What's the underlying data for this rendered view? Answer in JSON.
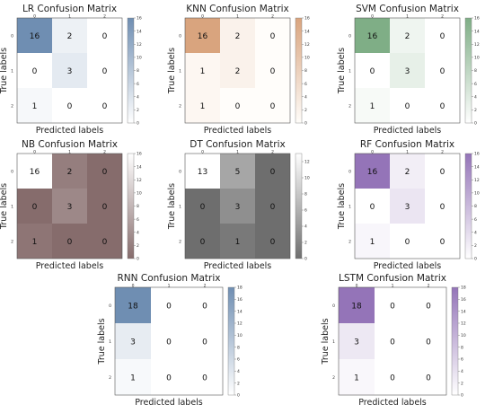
{
  "figure": {
    "x_axis_label": "Predicted labels",
    "y_axis_label": "True labels"
  },
  "chart_data": [
    {
      "type": "heatmap",
      "title": "LR Confusion Matrix",
      "xlabel": "Predicted labels",
      "ylabel": "True labels",
      "x_ticks": [
        "0",
        "1",
        "2"
      ],
      "y_ticks": [
        "0",
        "1",
        "2"
      ],
      "values": [
        [
          16,
          2,
          0
        ],
        [
          0,
          3,
          0
        ],
        [
          1,
          0,
          0
        ]
      ],
      "colorbar": {
        "min": 0,
        "max": 16,
        "ticks": [
          0,
          2,
          4,
          6,
          8,
          10,
          12,
          14,
          16
        ]
      },
      "colormap": {
        "low": "#ffffff",
        "high": "#6f8eb2"
      }
    },
    {
      "type": "heatmap",
      "title": "KNN Confusion Matrix",
      "xlabel": "Predicted labels",
      "ylabel": "True labels",
      "x_ticks": [
        "0",
        "1",
        "2"
      ],
      "y_ticks": [
        "0",
        "1",
        "2"
      ],
      "values": [
        [
          16,
          2,
          0
        ],
        [
          1,
          2,
          0
        ],
        [
          1,
          0,
          0
        ]
      ],
      "colorbar": {
        "min": 0,
        "max": 16,
        "ticks": [
          0,
          2,
          4,
          6,
          8,
          10,
          12,
          14,
          16
        ]
      },
      "colormap": {
        "low": "#fffdfa",
        "high": "#d9a47e"
      }
    },
    {
      "type": "heatmap",
      "title": "SVM Confusion Matrix",
      "xlabel": "Predicted labels",
      "ylabel": "True labels",
      "x_ticks": [
        "0",
        "1",
        "2"
      ],
      "y_ticks": [
        "0",
        "1",
        "2"
      ],
      "values": [
        [
          16,
          2,
          0
        ],
        [
          0,
          3,
          0
        ],
        [
          1,
          0,
          0
        ]
      ],
      "colorbar": {
        "min": 0,
        "max": 16,
        "ticks": [
          0,
          2,
          4,
          6,
          8,
          10,
          12,
          14,
          16
        ]
      },
      "colormap": {
        "low": "#ffffff",
        "high": "#7fae86"
      }
    },
    {
      "type": "heatmap",
      "title": "NB Confusion Matrix",
      "xlabel": "Predicted labels",
      "ylabel": "True labels",
      "x_ticks": [
        "0",
        "1",
        "2"
      ],
      "y_ticks": [
        "0",
        "1",
        "2"
      ],
      "values": [
        [
          16,
          2,
          0
        ],
        [
          0,
          3,
          0
        ],
        [
          1,
          0,
          0
        ]
      ],
      "colorbar": {
        "min": 0,
        "max": 16,
        "ticks": [
          0,
          2,
          4,
          6,
          8,
          10,
          12,
          14,
          16
        ]
      },
      "colormap": {
        "low": "#866c6c",
        "high": "#ffffff"
      }
    },
    {
      "type": "heatmap",
      "title": "DT Confusion Matrix",
      "xlabel": "Predicted labels",
      "ylabel": "True labels",
      "x_ticks": [
        "0",
        "1",
        "2"
      ],
      "y_ticks": [
        "0",
        "1",
        "2"
      ],
      "values": [
        [
          13,
          5,
          0
        ],
        [
          0,
          3,
          0
        ],
        [
          0,
          1,
          0
        ]
      ],
      "colorbar": {
        "min": 0,
        "max": 13,
        "ticks": [
          0,
          2,
          4,
          6,
          8,
          10,
          12
        ]
      },
      "colormap": {
        "low": "#6e6e6e",
        "high": "#ffffff"
      }
    },
    {
      "type": "heatmap",
      "title": "RF Confusion Matrix",
      "xlabel": "Predicted labels",
      "ylabel": "True labels",
      "x_ticks": [
        "0",
        "1",
        "2"
      ],
      "y_ticks": [
        "0",
        "1",
        "2"
      ],
      "values": [
        [
          16,
          2,
          0
        ],
        [
          0,
          3,
          0
        ],
        [
          1,
          0,
          0
        ]
      ],
      "colorbar": {
        "min": 0,
        "max": 16,
        "ticks": [
          0,
          2,
          4,
          6,
          8,
          10,
          12,
          14,
          16
        ]
      },
      "colormap": {
        "low": "#ffffff",
        "high": "#9474b8"
      }
    },
    {
      "type": "heatmap",
      "title": "RNN Confusion Matrix",
      "xlabel": "Predicted labels",
      "ylabel": "True labels",
      "x_ticks": [
        "0",
        "1",
        "2"
      ],
      "y_ticks": [
        "0",
        "1",
        "2"
      ],
      "values": [
        [
          18,
          0,
          0
        ],
        [
          3,
          0,
          0
        ],
        [
          1,
          0,
          0
        ]
      ],
      "colorbar": {
        "min": 0,
        "max": 18,
        "ticks": [
          0,
          2,
          4,
          6,
          8,
          10,
          12,
          14,
          16,
          18
        ]
      },
      "colormap": {
        "low": "#ffffff",
        "high": "#6f8eb2"
      }
    },
    {
      "type": "heatmap",
      "title": "LSTM Confusion Matrix",
      "xlabel": "Predicted labels",
      "ylabel": "True labels",
      "x_ticks": [
        "0",
        "1",
        "2"
      ],
      "y_ticks": [
        "0",
        "1",
        "2"
      ],
      "values": [
        [
          18,
          0,
          0
        ],
        [
          3,
          0,
          0
        ],
        [
          1,
          0,
          0
        ]
      ],
      "colorbar": {
        "min": 0,
        "max": 18,
        "ticks": [
          0,
          2,
          4,
          6,
          8,
          10,
          12,
          14,
          16,
          18
        ]
      },
      "colormap": {
        "low": "#ffffff",
        "high": "#9474b8"
      }
    }
  ]
}
